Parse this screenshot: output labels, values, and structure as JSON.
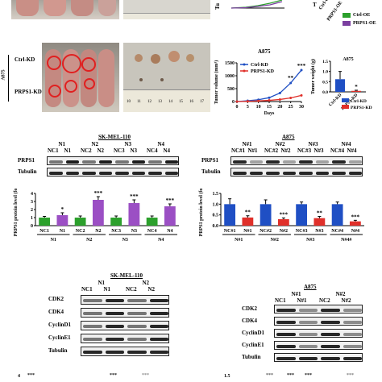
{
  "panel_top": {
    "legend_oe": [
      "Ctrl-OE",
      "PRPS1-OE"
    ],
    "legend_oe_colors": [
      "#2ca02c",
      "#7b3fa0"
    ],
    "tick_labels_oe": [
      "Ctrl-OE",
      "PRPS1-OE"
    ],
    "axis_fragment_left": "Tu",
    "axis_fragment_right": "T"
  },
  "panel_a875": {
    "cell_line": "A875",
    "row_labels": [
      "Ctrl-KD",
      "PRPS1-KD"
    ],
    "ruler_numbers": [
      "10",
      "11",
      "12",
      "13",
      "14",
      "15",
      "16",
      "17"
    ]
  },
  "chart_data": [
    {
      "type": "line",
      "title": "A875",
      "xlabel": "Days",
      "ylabel": "Tumer volume (mm³)",
      "x": [
        0,
        5,
        10,
        15,
        20,
        25,
        30
      ],
      "ylim": [
        0,
        1500
      ],
      "yticks": [
        0,
        500,
        1000,
        1500
      ],
      "series": [
        {
          "name": "Ctrl-KD",
          "color": "#1f4fc4",
          "values": [
            0,
            30,
            70,
            150,
            330,
            720,
            1220
          ]
        },
        {
          "name": "PRPS1-KD",
          "color": "#e0302a",
          "values": [
            0,
            10,
            25,
            45,
            80,
            140,
            240
          ]
        }
      ],
      "annotations": [
        "**",
        "***"
      ]
    },
    {
      "type": "bar",
      "title": "A875",
      "ylabel": "Tumer weight (g)",
      "categories": [
        "Ctrl-KD",
        "PRPS1-KD"
      ],
      "values": [
        0.62,
        0.05
      ],
      "errors": [
        0.38,
        0.03
      ],
      "colors": [
        "#1f4fc4",
        "#e0302a"
      ],
      "ylim": [
        0,
        1.5
      ],
      "yticks": [
        0.0,
        0.5,
        1.0,
        1.5
      ],
      "annotations": [
        "*"
      ],
      "legend": [
        "Ctrl-KD",
        "PRPS1-KD"
      ]
    },
    {
      "type": "bar",
      "title": "SK-MEL-110",
      "ylabel": "PRPS1 protein level (fold)",
      "categories": [
        "NC1",
        "N1",
        "NC2",
        "N2",
        "NC3",
        "N3",
        "NC4",
        "N4"
      ],
      "groups": [
        "N1",
        "N2",
        "N3",
        "N4"
      ],
      "values": [
        1.0,
        1.3,
        1.0,
        3.2,
        1.0,
        2.8,
        1.0,
        2.4
      ],
      "errors": [
        0.15,
        0.3,
        0.2,
        0.4,
        0.2,
        0.4,
        0.2,
        0.3
      ],
      "colors": [
        "#2ca02c",
        "#9b4fc4",
        "#2ca02c",
        "#9b4fc4",
        "#2ca02c",
        "#9b4fc4",
        "#2ca02c",
        "#9b4fc4"
      ],
      "ylim": [
        0,
        4
      ],
      "yticks": [
        0,
        1,
        2,
        3,
        4
      ],
      "annotations": [
        "*",
        "***",
        "***",
        "***"
      ]
    },
    {
      "type": "bar",
      "title": "A875",
      "ylabel": "PRPS1 protein level (fold)",
      "categories": [
        "NC#1",
        "N#1",
        "NC#2",
        "N#2",
        "NC#3",
        "N#3",
        "NC#4",
        "N#4"
      ],
      "groups": [
        "N#1",
        "N#2",
        "N#3",
        "N#4#"
      ],
      "values": [
        1.0,
        0.38,
        1.0,
        0.3,
        1.0,
        0.35,
        1.0,
        0.2
      ],
      "errors": [
        0.25,
        0.08,
        0.2,
        0.06,
        0.1,
        0.08,
        0.1,
        0.05
      ],
      "colors": [
        "#1f4fc4",
        "#e0302a",
        "#1f4fc4",
        "#e0302a",
        "#1f4fc4",
        "#e0302a",
        "#1f4fc4",
        "#e0302a"
      ],
      "ylim": [
        0,
        1.5
      ],
      "yticks": [
        0.0,
        0.5,
        1.0,
        1.5
      ],
      "annotations": [
        "**",
        "***",
        "**",
        "***"
      ]
    }
  ],
  "blot_sk": {
    "title": "SK-MEL-110",
    "groups": [
      "N1",
      "N2",
      "N3",
      "N4"
    ],
    "lanes": [
      "NC1",
      "N1",
      "NC2",
      "N2",
      "NC3",
      "N3",
      "NC4",
      "N4"
    ],
    "rows": [
      "PRPS1",
      "Tubulin"
    ]
  },
  "blot_a875": {
    "title": "A875",
    "groups": [
      "N#1",
      "N#2",
      "N#3",
      "N#4"
    ],
    "lanes": [
      "NC#1",
      "N#1",
      "NC#2",
      "N#2",
      "NC#3",
      "N#3",
      "NC#4",
      "N#4"
    ],
    "rows": [
      "PRPS1",
      "Tubulin"
    ]
  },
  "blot2_sk": {
    "title": "SK-MEL-110",
    "groups": [
      "N1",
      "N2"
    ],
    "lanes": [
      "NC1",
      "N1",
      "NC2",
      "N2"
    ],
    "rows": [
      "CDK2",
      "CDK4",
      "CyclinD1",
      "CyclinE1",
      "Tubulin"
    ]
  },
  "blot2_a875": {
    "title": "A875",
    "groups": [
      "N#1",
      "N#2"
    ],
    "lanes": [
      "NC1",
      "N#1",
      "NC2",
      "N#2"
    ],
    "rows": [
      "CDK2",
      "CDK4",
      "CyclinD1",
      "CyclinE1",
      "Tubulin"
    ]
  },
  "bottom_fragment": {
    "left_tick": "4",
    "left_stars": [
      "***",
      "***",
      "***"
    ],
    "right_tick": "1.5",
    "right_stars": [
      "***",
      "***",
      "***",
      "***"
    ]
  }
}
